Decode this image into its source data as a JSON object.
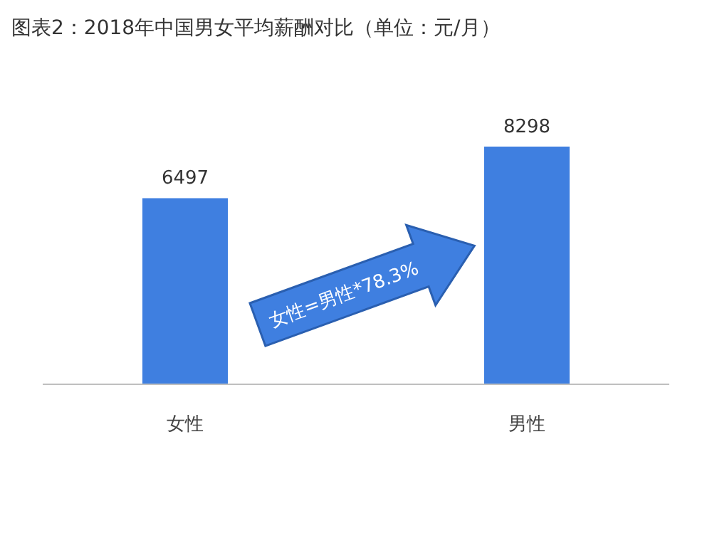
{
  "chart_data": {
    "type": "bar",
    "title": "图表2：2018年中国男女平均薪酬对比（单位：元/月）",
    "categories": [
      "女性",
      "男性"
    ],
    "values": [
      6497,
      8298
    ],
    "color": "#3f7fe0",
    "data_labels": true,
    "annotations": [
      "女性=男性*78.3%"
    ]
  }
}
